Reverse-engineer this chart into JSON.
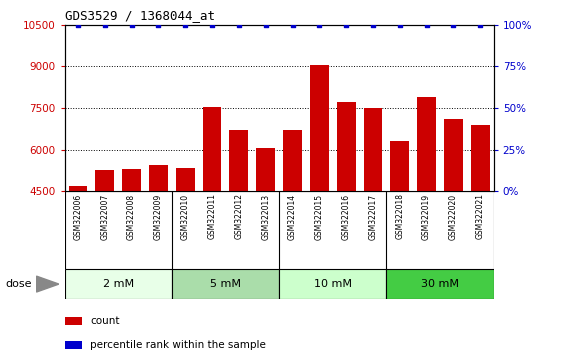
{
  "title": "GDS3529 / 1368044_at",
  "samples": [
    "GSM322006",
    "GSM322007",
    "GSM322008",
    "GSM322009",
    "GSM322010",
    "GSM322011",
    "GSM322012",
    "GSM322013",
    "GSM322014",
    "GSM322015",
    "GSM322016",
    "GSM322017",
    "GSM322018",
    "GSM322019",
    "GSM322020",
    "GSM322021"
  ],
  "counts": [
    4700,
    5250,
    5300,
    5450,
    5350,
    7550,
    6700,
    6050,
    6700,
    9050,
    7700,
    7500,
    6300,
    7900,
    7100,
    6900
  ],
  "percentile_ranks": [
    100,
    100,
    100,
    100,
    100,
    100,
    100,
    100,
    100,
    100,
    100,
    100,
    100,
    100,
    100,
    100
  ],
  "bar_color": "#cc0000",
  "dot_color": "#0000cc",
  "ylim_left": [
    4500,
    10500
  ],
  "ylim_right": [
    0,
    100
  ],
  "yticks_left": [
    4500,
    6000,
    7500,
    9000,
    10500
  ],
  "yticks_right": [
    0,
    25,
    50,
    75,
    100
  ],
  "dose_groups": [
    {
      "label": "2 mM",
      "start": 0,
      "end": 4,
      "color": "#e8ffe8"
    },
    {
      "label": "5 mM",
      "start": 4,
      "end": 8,
      "color": "#aaddaa"
    },
    {
      "label": "10 mM",
      "start": 8,
      "end": 12,
      "color": "#ccffcc"
    },
    {
      "label": "30 mM",
      "start": 12,
      "end": 16,
      "color": "#44cc44"
    }
  ],
  "xlabel_color": "#cc0000",
  "ylabel_right_color": "#0000cc",
  "legend_count_color": "#cc0000",
  "legend_pct_color": "#0000cc",
  "grid_color": "#000000",
  "bg_color": "#ffffff",
  "tick_area_bg": "#cccccc",
  "bar_bottom": 4500
}
